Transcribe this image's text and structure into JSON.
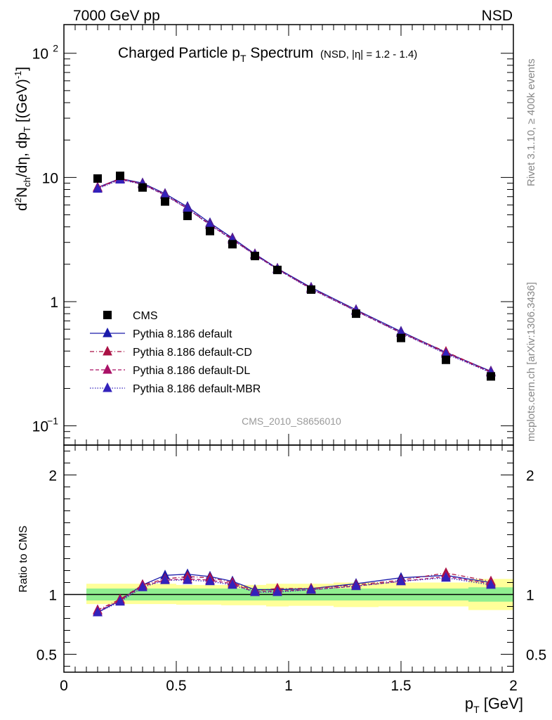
{
  "header": {
    "left": "7000 GeV pp",
    "right": "NSD"
  },
  "side_text": {
    "rivet": "Rivet 3.1.10, ≥ 400k events",
    "mcplots": "mcplots.cern.ch [arXiv:1306.3436]"
  },
  "colors": {
    "cms": "#000000",
    "default": "#1a1aaa",
    "default_cd": "#aa1144",
    "default_dl": "#aa1166",
    "default_mbr": "#3322bb",
    "band_stat": "#90ee90",
    "band_total": "#ffff99"
  },
  "chart_data": [
    {
      "type": "line",
      "panel": "main",
      "title": "Charged Particle p_T Spectrum",
      "title_main": "Charged Particle p",
      "title_sub": "T",
      "title_main2": " Spectrum",
      "subtitle": "(NSD, |η| = 1.2 - 1.4)",
      "watermark": "CMS_2010_S8656010",
      "ylabel": "d²N_ch/dη, dp_T [(GeV)⁻¹]",
      "ylabel_parts": [
        "d",
        "2",
        "N",
        "ch",
        "/dη, dp",
        "T",
        " [(GeV)",
        "-1",
        "]"
      ],
      "yscale": "log",
      "ylim": [
        0.07,
        170
      ],
      "xlim": [
        0,
        2.0
      ],
      "yticks": [
        {
          "v": 100,
          "base": "10",
          "exp": "2"
        },
        {
          "v": 10,
          "base": "10",
          "exp": ""
        },
        {
          "v": 1,
          "base": "1",
          "exp": ""
        },
        {
          "v": 0.1,
          "base": "10",
          "exp": "−1"
        }
      ],
      "x": [
        0.15,
        0.25,
        0.35,
        0.45,
        0.55,
        0.65,
        0.75,
        0.85,
        0.95,
        1.1,
        1.3,
        1.5,
        1.7,
        1.9
      ],
      "series": [
        {
          "name": "CMS",
          "key": "cms",
          "style": "markers",
          "marker": "square",
          "values": [
            9.8,
            10.3,
            8.3,
            6.4,
            4.9,
            3.7,
            2.9,
            2.33,
            1.8,
            1.25,
            0.8,
            0.51,
            0.34,
            0.25
          ]
        },
        {
          "name": "Pythia 8.186 default",
          "key": "default",
          "style": "solid",
          "marker": "triangle",
          "values": [
            8.3,
            9.8,
            9.0,
            7.4,
            5.8,
            4.3,
            3.25,
            2.42,
            1.85,
            1.3,
            0.86,
            0.575,
            0.39,
            0.275
          ]
        },
        {
          "name": "Pythia 8.186 default-CD",
          "key": "default_cd",
          "style": "dashdot",
          "marker": "triangle",
          "values": [
            8.3,
            9.8,
            8.9,
            7.3,
            5.65,
            4.2,
            3.2,
            2.4,
            1.84,
            1.28,
            0.85,
            0.565,
            0.395,
            0.272
          ]
        },
        {
          "name": "Pythia 8.186 default-DL",
          "key": "default_dl",
          "style": "dashed",
          "marker": "triangle",
          "values": [
            8.2,
            9.7,
            8.8,
            7.2,
            5.6,
            4.15,
            3.15,
            2.38,
            1.82,
            1.27,
            0.84,
            0.56,
            0.385,
            0.27
          ]
        },
        {
          "name": "Pythia 8.186 default-MBR",
          "key": "default_mbr",
          "style": "dotted",
          "marker": "triangle",
          "values": [
            8.1,
            9.6,
            8.8,
            7.2,
            5.6,
            4.15,
            3.15,
            2.37,
            1.82,
            1.26,
            0.84,
            0.56,
            0.38,
            0.268
          ]
        }
      ]
    },
    {
      "type": "line",
      "panel": "ratio",
      "ylabel": "Ratio to CMS",
      "xlabel": "p_T [GeV]",
      "xlabel_parts": [
        "p",
        "T",
        " [GeV]"
      ],
      "ylim": [
        0.35,
        2.25
      ],
      "xlim": [
        0,
        2.0
      ],
      "yticks": [
        {
          "v": 0.5,
          "label": "0.5"
        },
        {
          "v": 1,
          "label": "1"
        },
        {
          "v": 2,
          "label": "2"
        }
      ],
      "xticks": [
        {
          "v": 0,
          "label": "0"
        },
        {
          "v": 0.5,
          "label": "0.5"
        },
        {
          "v": 1,
          "label": "1"
        },
        {
          "v": 1.5,
          "label": "1.5"
        },
        {
          "v": 2,
          "label": "2"
        }
      ],
      "bands": {
        "edges": [
          0.1,
          0.2,
          0.3,
          0.4,
          0.5,
          0.6,
          0.7,
          0.8,
          0.9,
          1.0,
          1.2,
          1.4,
          1.6,
          1.8,
          2.0
        ],
        "stat": [
          [
            0.95,
            1.05
          ],
          [
            0.95,
            1.05
          ],
          [
            0.95,
            1.05
          ],
          [
            0.95,
            1.05
          ],
          [
            0.95,
            1.05
          ],
          [
            0.95,
            1.05
          ],
          [
            0.95,
            1.05
          ],
          [
            0.95,
            1.05
          ],
          [
            0.95,
            1.05
          ],
          [
            0.95,
            1.05
          ],
          [
            0.95,
            1.05
          ],
          [
            0.95,
            1.05
          ],
          [
            0.95,
            1.05
          ],
          [
            0.94,
            1.06
          ]
        ],
        "total": [
          [
            0.92,
            1.09
          ],
          [
            0.92,
            1.09
          ],
          [
            0.92,
            1.09
          ],
          [
            0.92,
            1.09
          ],
          [
            0.915,
            1.08
          ],
          [
            0.915,
            1.08
          ],
          [
            0.91,
            1.08
          ],
          [
            0.91,
            1.08
          ],
          [
            0.9,
            1.09
          ],
          [
            0.905,
            1.09
          ],
          [
            0.895,
            1.1
          ],
          [
            0.9,
            1.1
          ],
          [
            0.9,
            1.1
          ],
          [
            0.87,
            1.13
          ]
        ]
      },
      "x": [
        0.15,
        0.25,
        0.35,
        0.45,
        0.55,
        0.65,
        0.75,
        0.85,
        0.95,
        1.1,
        1.3,
        1.5,
        1.7,
        1.9
      ],
      "series": [
        {
          "name": "Pythia 8.186 default",
          "key": "default",
          "style": "solid",
          "values": [
            0.85,
            0.95,
            1.08,
            1.16,
            1.17,
            1.15,
            1.11,
            1.04,
            1.04,
            1.05,
            1.09,
            1.14,
            1.16,
            1.1
          ]
        },
        {
          "name": "Pythia 8.186 default-CD",
          "key": "default_cd",
          "style": "dashdot",
          "values": [
            0.87,
            0.96,
            1.08,
            1.13,
            1.15,
            1.14,
            1.1,
            1.03,
            1.05,
            1.05,
            1.08,
            1.12,
            1.18,
            1.11
          ]
        },
        {
          "name": "Pythia 8.186 default-DL",
          "key": "default_dl",
          "style": "dashed",
          "values": [
            0.86,
            0.95,
            1.07,
            1.12,
            1.13,
            1.12,
            1.09,
            1.02,
            1.03,
            1.04,
            1.07,
            1.11,
            1.15,
            1.09
          ]
        },
        {
          "name": "Pythia 8.186 default-MBR",
          "key": "default_mbr",
          "style": "dotted",
          "values": [
            0.85,
            0.94,
            1.06,
            1.12,
            1.12,
            1.11,
            1.08,
            1.02,
            1.02,
            1.04,
            1.07,
            1.11,
            1.14,
            1.08
          ]
        }
      ]
    }
  ]
}
